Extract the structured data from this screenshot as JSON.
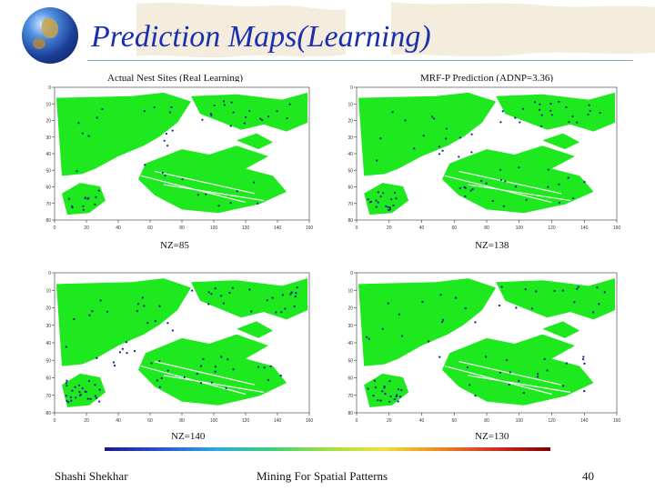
{
  "slide": {
    "title": "Prediction Maps(Learning)",
    "footer_author": "Shashi Shekhar",
    "footer_center": "Mining For Spatial Patterns",
    "page_number": "40"
  },
  "panels": [
    {
      "title": "Actual Nest Sites (Real Learning)",
      "nz": "NZ=85",
      "x_ticks": [
        "0",
        "20",
        "40",
        "60",
        "80",
        "100",
        "120",
        "140",
        "160"
      ],
      "y_ticks": [
        "0",
        "10",
        "20",
        "30",
        "40",
        "50",
        "60",
        "70",
        "80"
      ]
    },
    {
      "title": "MRF-P Prediction (ADNP=3.36)",
      "nz": "NZ=138",
      "x_ticks": [
        "0",
        "20",
        "40",
        "60",
        "80",
        "100",
        "120",
        "140",
        "160"
      ],
      "y_ticks": [
        "0",
        "10",
        "20",
        "30",
        "40",
        "50",
        "60",
        "70",
        "80"
      ]
    },
    {
      "title": "",
      "nz": "NZ=140",
      "x_ticks": [
        "0",
        "20",
        "40",
        "60",
        "80",
        "100",
        "120",
        "140",
        "160"
      ],
      "y_ticks": [
        "0",
        "10",
        "20",
        "30",
        "40",
        "50",
        "60",
        "70",
        "80"
      ]
    },
    {
      "title": "",
      "nz": "NZ=130",
      "x_ticks": [
        "0",
        "20",
        "40",
        "60",
        "80",
        "100",
        "120",
        "140",
        "160"
      ],
      "y_ticks": [
        "0",
        "10",
        "20",
        "30",
        "40",
        "50",
        "60",
        "70",
        "80"
      ]
    }
  ],
  "colors": {
    "title": "#1a2fb0",
    "land": "#1ee81e",
    "nest": "#10208a"
  }
}
